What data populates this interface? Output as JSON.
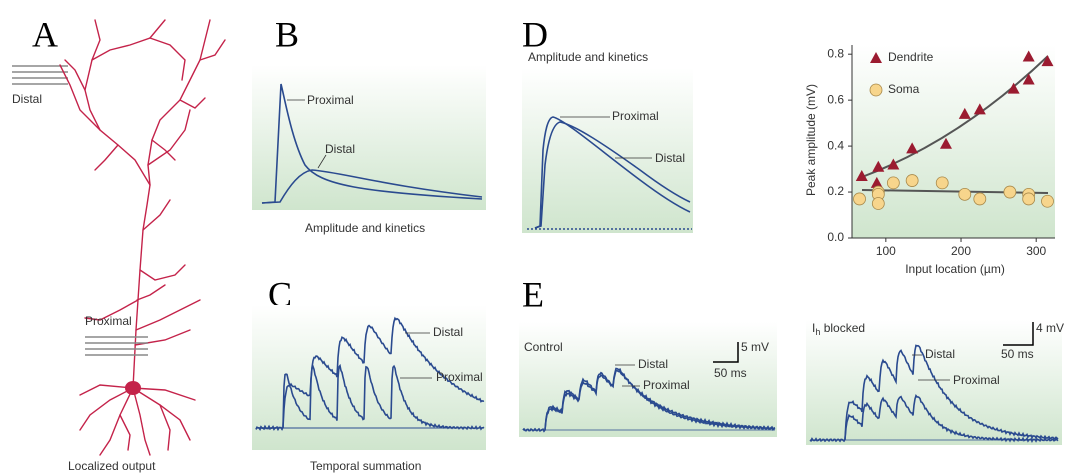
{
  "panel_a": {
    "label": "A",
    "distal": "Distal",
    "proximal": "Proximal",
    "caption": "Localized output"
  },
  "panel_b": {
    "label": "B",
    "proximal": "Proximal",
    "distal": "Distal",
    "caption": "Amplitude and kinetics"
  },
  "panel_c": {
    "label": "C",
    "distal": "Distal",
    "proximal": "Proximal",
    "caption": "Temporal summation"
  },
  "panel_d": {
    "label": "D",
    "title": "Amplitude and kinetics",
    "proximal": "Proximal",
    "distal": "Distal"
  },
  "panel_e": {
    "label": "E",
    "control": {
      "title": "Control",
      "distal": "Distal",
      "proximal": "Proximal",
      "scale_y": "5 mV",
      "scale_x": "50 ms"
    },
    "blocked": {
      "title_main": "I",
      "title_sub": "h",
      "title_rest": " blocked",
      "distal": "Distal",
      "proximal": "Proximal",
      "scale_y": "4 mV",
      "scale_x": "50 ms"
    }
  },
  "chart_data": {
    "type": "scatter",
    "xlabel": "Input location (µm)",
    "ylabel": "Peak amplitude (mV)",
    "xlim": [
      55,
      325
    ],
    "ylim": [
      0,
      0.84
    ],
    "xticks": [
      100,
      200,
      300
    ],
    "yticks": [
      {
        "value": 0,
        "label": "0.0"
      },
      0.2,
      0.4,
      0.6,
      0.8
    ],
    "series": [
      {
        "name": "Dendrite",
        "color": "#9b1b30",
        "marker": "triangle",
        "x": [
          68,
          90,
          88,
          110,
          135,
          180,
          205,
          225,
          270,
          290,
          290,
          315
        ],
        "values": [
          0.27,
          0.31,
          0.24,
          0.32,
          0.39,
          0.41,
          0.54,
          0.56,
          0.65,
          0.69,
          0.79,
          0.77
        ]
      },
      {
        "name": "Soma",
        "color": "#f7d58c",
        "marker": "circle",
        "x": [
          65,
          90,
          90,
          90,
          110,
          135,
          175,
          205,
          225,
          265,
          290,
          290,
          315
        ],
        "values": [
          0.17,
          0.2,
          0.19,
          0.15,
          0.24,
          0.25,
          0.24,
          0.19,
          0.17,
          0.2,
          0.19,
          0.17,
          0.16
        ]
      }
    ]
  }
}
